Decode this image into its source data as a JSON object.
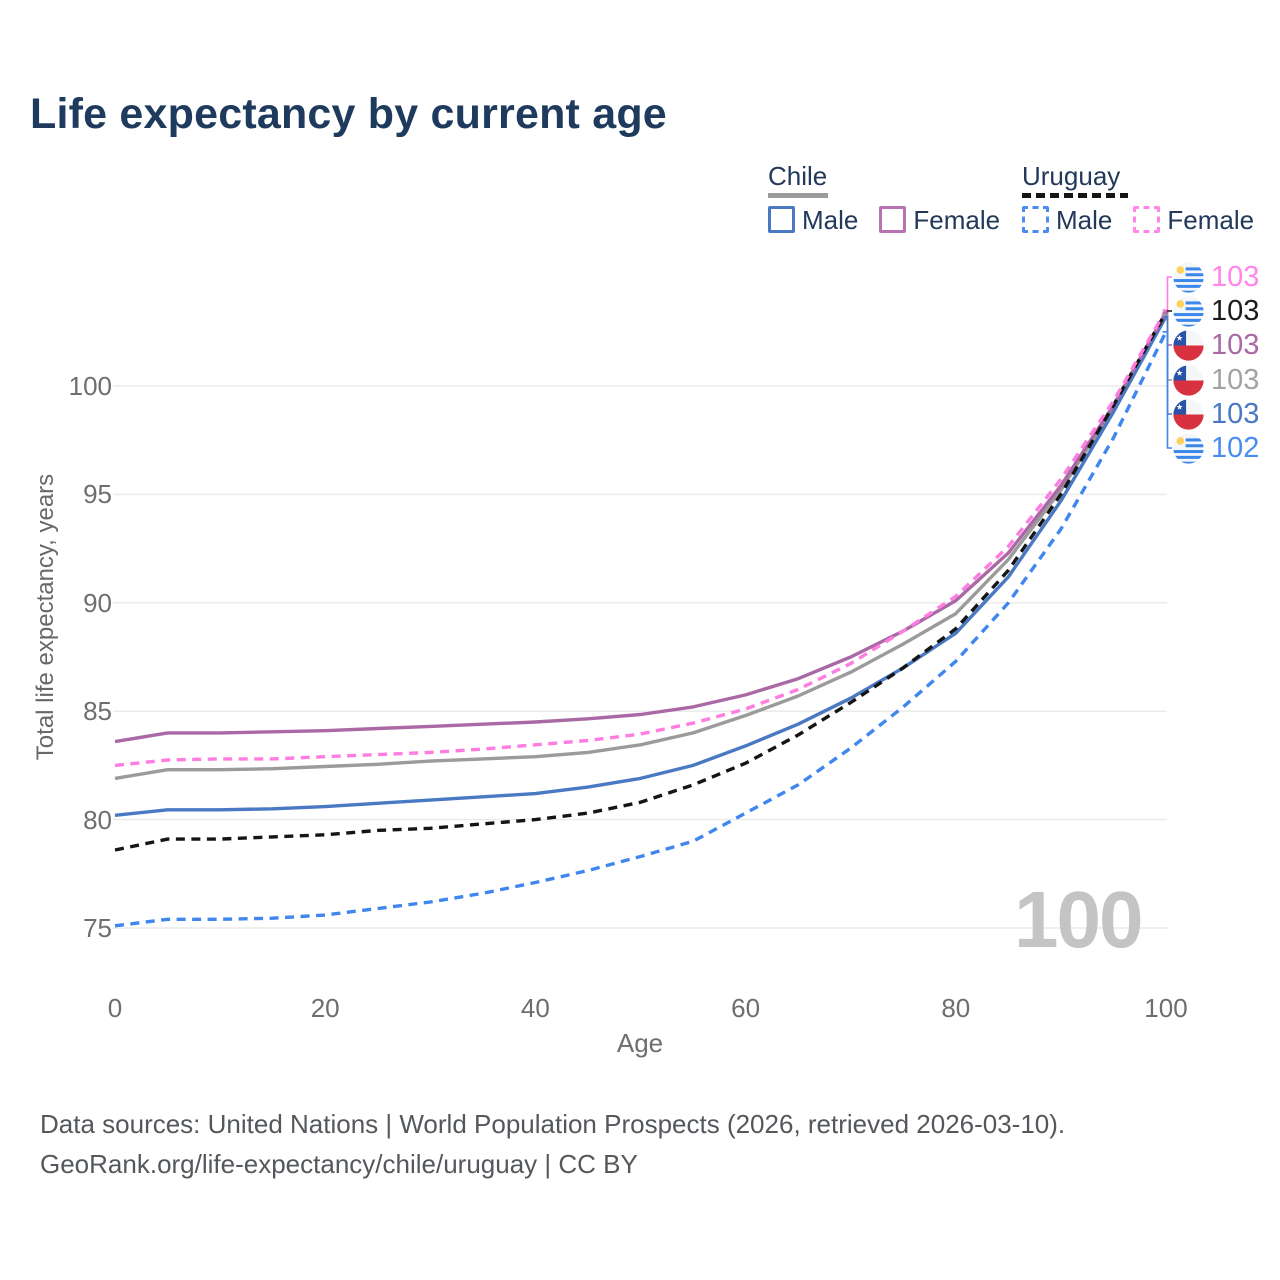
{
  "title": "Life expectancy by current age",
  "watermark": "100",
  "legend": {
    "groups": [
      {
        "id": "chile",
        "label": "Chile",
        "line_style": "solid",
        "underline_color": "#9b9b9b",
        "items": [
          {
            "id": "chile-male",
            "label": "Male",
            "color": "#4a79c4",
            "dashed": false
          },
          {
            "id": "chile-female",
            "label": "Female",
            "color": "#b873b3",
            "dashed": false
          }
        ]
      },
      {
        "id": "uruguay",
        "label": "Uruguay",
        "line_style": "dashed",
        "underline_color": "#151515",
        "items": [
          {
            "id": "uruguay-male",
            "label": "Male",
            "color": "#4b8bf3",
            "dashed": true
          },
          {
            "id": "uruguay-female",
            "label": "Female",
            "color": "#ff85e8",
            "dashed": true
          }
        ]
      }
    ]
  },
  "axes": {
    "x": {
      "label": "Age",
      "ticks": [
        0,
        20,
        40,
        60,
        80,
        100
      ],
      "range": [
        0,
        100
      ]
    },
    "y": {
      "label": "Total life expectancy, years",
      "ticks": [
        75,
        80,
        85,
        90,
        95,
        100
      ],
      "range": [
        73.5,
        104.5
      ]
    }
  },
  "chart_data": {
    "type": "line",
    "title": "Life expectancy by current age",
    "xlabel": "Age",
    "ylabel": "Total life expectancy, years",
    "grid": true,
    "legend_position": "top-right",
    "xlim": [
      0,
      100
    ],
    "ylim": [
      73.5,
      104.5
    ],
    "x": [
      0,
      5,
      10,
      15,
      20,
      25,
      30,
      35,
      40,
      45,
      50,
      55,
      60,
      65,
      70,
      75,
      80,
      85,
      90,
      95,
      100
    ],
    "series": [
      {
        "id": "chile-total",
        "name": "Chile (both sexes)",
        "color": "#9b9b9b",
        "dashed": false,
        "values": [
          81.9,
          82.3,
          82.3,
          82.35,
          82.45,
          82.55,
          82.7,
          82.8,
          82.9,
          83.1,
          83.45,
          84.0,
          84.8,
          85.7,
          86.8,
          88.1,
          89.5,
          92.0,
          95.2,
          99.0,
          103.3
        ]
      },
      {
        "id": "chile-male",
        "name": "Chile Male",
        "color": "#4a79c4",
        "dashed": false,
        "values": [
          80.2,
          80.45,
          80.45,
          80.5,
          80.6,
          80.75,
          80.9,
          81.05,
          81.2,
          81.5,
          81.9,
          82.5,
          83.4,
          84.4,
          85.6,
          87.0,
          88.6,
          91.2,
          94.7,
          98.8,
          103.2
        ]
      },
      {
        "id": "chile-female",
        "name": "Chile Female",
        "color": "#aa69a5",
        "dashed": false,
        "values": [
          83.6,
          84.0,
          84.0,
          84.05,
          84.1,
          84.2,
          84.3,
          84.4,
          84.5,
          84.65,
          84.85,
          85.2,
          85.75,
          86.5,
          87.5,
          88.7,
          90.1,
          92.3,
          95.4,
          99.1,
          103.4
        ]
      },
      {
        "id": "uruguay-male",
        "name": "Uruguay Male",
        "color": "#3f86ef",
        "dashed": true,
        "values": [
          75.1,
          75.4,
          75.4,
          75.45,
          75.6,
          75.9,
          76.2,
          76.6,
          77.1,
          77.65,
          78.3,
          79.0,
          80.3,
          81.6,
          83.3,
          85.2,
          87.3,
          90.0,
          93.4,
          97.6,
          102.5
        ]
      },
      {
        "id": "uruguay-total",
        "name": "Uruguay (both sexes)",
        "color": "#151515",
        "dashed": true,
        "values": [
          78.6,
          79.1,
          79.1,
          79.2,
          79.3,
          79.5,
          79.6,
          79.8,
          80.0,
          80.3,
          80.8,
          81.6,
          82.6,
          83.9,
          85.4,
          87.0,
          88.8,
          91.5,
          95.0,
          99.1,
          103.4
        ]
      },
      {
        "id": "uruguay-female",
        "name": "Uruguay Female",
        "color": "#ff7ce0",
        "dashed": true,
        "values": [
          82.5,
          82.75,
          82.8,
          82.8,
          82.9,
          83.0,
          83.1,
          83.25,
          83.45,
          83.65,
          83.95,
          84.45,
          85.1,
          86.0,
          87.2,
          88.7,
          90.3,
          92.6,
          95.7,
          99.3,
          103.5
        ]
      }
    ]
  },
  "end_labels": [
    {
      "series": "uruguay-female",
      "flag": "uruguay",
      "value": "103",
      "color": "#ff85e8"
    },
    {
      "series": "uruguay-total",
      "flag": "uruguay",
      "value": "103",
      "color": "#1b1b1b"
    },
    {
      "series": "chile-female",
      "flag": "chile",
      "value": "103",
      "color": "#aa69a5"
    },
    {
      "series": "chile-total",
      "flag": "chile",
      "value": "103",
      "color": "#a3a3a3"
    },
    {
      "series": "chile-male",
      "flag": "chile",
      "value": "103",
      "color": "#4a79c4"
    },
    {
      "series": "uruguay-male",
      "flag": "uruguay",
      "value": "102",
      "color": "#4a8cf0"
    }
  ],
  "footer": {
    "line1": "Data sources: United Nations | World Population Prospects (2026, retrieved 2026-03-10).",
    "line2": "GeoRank.org/life-expectancy/chile/uruguay | CC BY"
  }
}
